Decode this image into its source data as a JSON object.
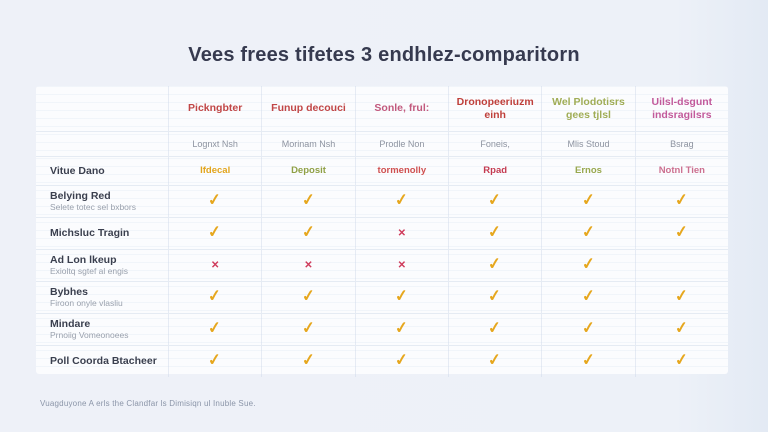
{
  "page": {
    "title": "Vees frees tifetes 3 endhlez-comparitorn",
    "footer": "Vuagduyone A erls the Clandfar ls Dimisiqn ul Inuble Sue."
  },
  "colors": {
    "check": "#e6a71e",
    "x": "#cf3b5b"
  },
  "icons": {
    "check": "✓",
    "x": "✕"
  },
  "chart_data": {
    "type": "table",
    "title": "Vees frees tifetes 3 endhlez-comparitorn",
    "value_row_label": "Vitue Dano",
    "columns": [
      {
        "label": "Pickngbter",
        "label_color": "#c14646",
        "sublabel": "Lognxt Nsh",
        "value": "Ifdecal",
        "value_color": "#e2a51c"
      },
      {
        "label": "Funup decouci",
        "label_color": "#c14646",
        "sublabel": "Morinam Nsh",
        "value": "Deposit",
        "value_color": "#8fa045"
      },
      {
        "label": "Sonle, frul:",
        "label_color": "#c2597d",
        "sublabel": "Prodle Non",
        "value": "tormenolly",
        "value_color": "#cf5050"
      },
      {
        "label": "Dronopeeriuzm einh",
        "label_color": "#bf3f3a",
        "sublabel": "Foneis,",
        "value": "Rpad",
        "value_color": "#c43a50"
      },
      {
        "label": "Wel Plodotisrs gees tjlsl",
        "label_color": "#a0ad56",
        "sublabel": "Mlis Stoud",
        "value": "Ernos",
        "value_color": "#98a84e"
      },
      {
        "label": "Uilsl-dsgunt indsragilsrs",
        "label_color": "#c25a9b",
        "sublabel": "Bsrag",
        "value": "Notnl Tien",
        "value_color": "#cc7090"
      }
    ],
    "rows": [
      {
        "label": "Belying Red",
        "sublabel": "Selete totec sel bxbors",
        "cells": [
          "check",
          "check",
          "check",
          "check",
          "check",
          "check"
        ]
      },
      {
        "label": "Michsluc Tragin",
        "sublabel": "",
        "cells": [
          "check",
          "check",
          "x",
          "check",
          "check",
          "check"
        ]
      },
      {
        "label": "Ad Lon lkeup",
        "sublabel": "Exioltq sgtef al engis",
        "cells": [
          "x",
          "x",
          "x",
          "check",
          "check",
          "none"
        ]
      },
      {
        "label": "Bybhes",
        "sublabel": "Firoon onyle vlasliu",
        "cells": [
          "check",
          "check",
          "check",
          "check",
          "check",
          "check"
        ]
      },
      {
        "label": "Mindare",
        "sublabel": "Prnoiig Vomeonoees",
        "cells": [
          "check",
          "check",
          "check",
          "check",
          "check",
          "check"
        ]
      },
      {
        "label": "Poll Coorda Btacheer",
        "sublabel": "",
        "cells": [
          "check",
          "check",
          "check",
          "check",
          "check",
          "check"
        ]
      }
    ]
  }
}
